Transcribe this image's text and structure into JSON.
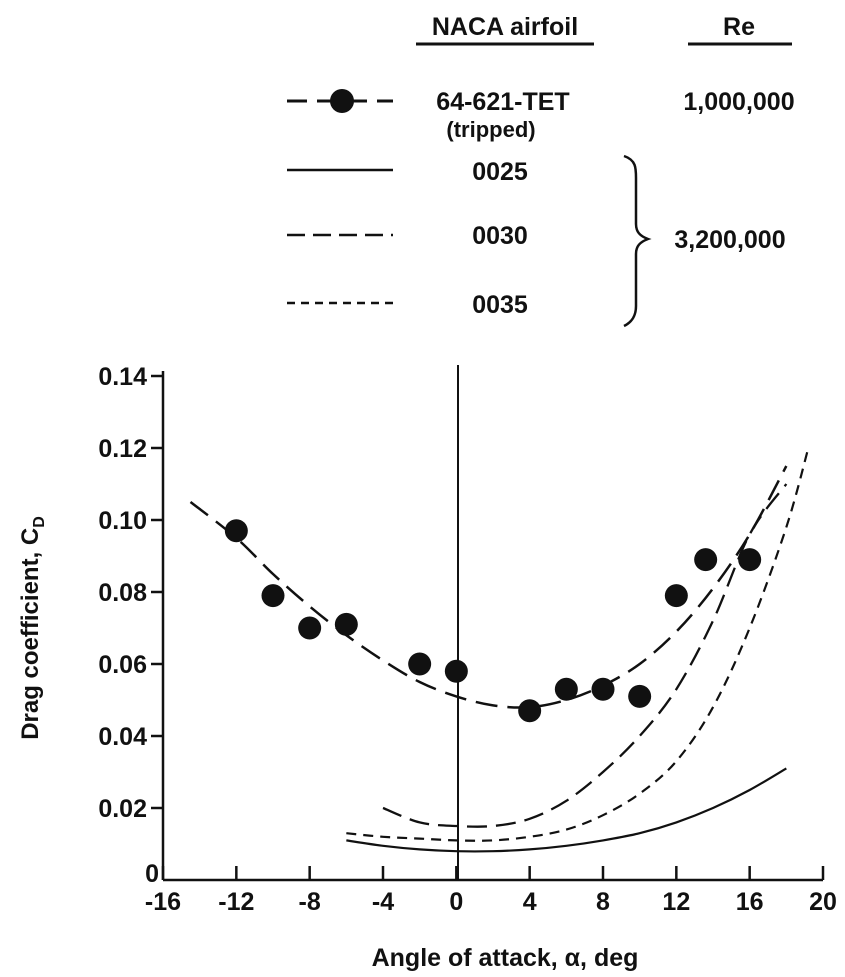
{
  "chart_data": {
    "type": "line",
    "xlabel": "Angle of attack, α, deg",
    "ylabel": "Drag coefficient, C",
    "ylabel_subscript": "D",
    "xlim": [
      -16,
      20
    ],
    "ylim": [
      0,
      0.14
    ],
    "xticks": [
      -16,
      -12,
      -8,
      -4,
      0,
      4,
      8,
      12,
      16,
      20
    ],
    "xtick_labels": [
      "-16",
      "-12",
      "-8",
      "-4",
      "0",
      "4",
      "8",
      "12",
      "16",
      "20"
    ],
    "yticks": [
      0,
      0.02,
      0.04,
      0.06,
      0.08,
      0.1,
      0.12,
      0.14
    ],
    "ytick_labels": [
      "0",
      "0.02",
      "0.04",
      "0.06",
      "0.08",
      "0.10",
      "0.12",
      "0.14"
    ],
    "legend": {
      "header_airfoil": "NACA airfoil",
      "header_re": "Re",
      "entries": [
        {
          "label": "64-621-TET",
          "sublabel": "(tripped)",
          "re": "1,000,000",
          "style": "dash-marker"
        },
        {
          "label": "0025",
          "style": "solid"
        },
        {
          "label": "0030",
          "style": "long-dash"
        },
        {
          "label": "0035",
          "style": "short-dash"
        }
      ],
      "bracket_re": "3,200,000"
    },
    "series": [
      {
        "name": "64-621-TET",
        "points": [
          [
            -12,
            0.097
          ],
          [
            -10,
            0.079
          ],
          [
            -8,
            0.07
          ],
          [
            -6,
            0.071
          ],
          [
            -2,
            0.06
          ],
          [
            0,
            0.058
          ],
          [
            4,
            0.047
          ],
          [
            6,
            0.053
          ],
          [
            8,
            0.053
          ],
          [
            10,
            0.051
          ],
          [
            12,
            0.079
          ],
          [
            13.6,
            0.089
          ],
          [
            16,
            0.089
          ]
        ],
        "curve": [
          [
            -14.5,
            0.105
          ],
          [
            -12,
            0.095
          ],
          [
            -10,
            0.085
          ],
          [
            -8,
            0.076
          ],
          [
            -6,
            0.068
          ],
          [
            -4,
            0.061
          ],
          [
            -2,
            0.055
          ],
          [
            0,
            0.051
          ],
          [
            2,
            0.0485
          ],
          [
            4,
            0.048
          ],
          [
            6,
            0.05
          ],
          [
            8,
            0.054
          ],
          [
            10,
            0.06
          ],
          [
            12,
            0.069
          ],
          [
            14,
            0.081
          ],
          [
            16,
            0.096
          ],
          [
            18,
            0.115
          ]
        ]
      },
      {
        "name": "0025",
        "curve": [
          [
            -6,
            0.011
          ],
          [
            -4,
            0.0095
          ],
          [
            -2,
            0.0085
          ],
          [
            0,
            0.008
          ],
          [
            2,
            0.008
          ],
          [
            4,
            0.0085
          ],
          [
            6,
            0.0095
          ],
          [
            8,
            0.011
          ],
          [
            10,
            0.013
          ],
          [
            12,
            0.016
          ],
          [
            14,
            0.02
          ],
          [
            16,
            0.025
          ],
          [
            18,
            0.031
          ]
        ]
      },
      {
        "name": "0030",
        "curve": [
          [
            -4,
            0.02
          ],
          [
            -2,
            0.016
          ],
          [
            0,
            0.015
          ],
          [
            2,
            0.015
          ],
          [
            4,
            0.017
          ],
          [
            6,
            0.022
          ],
          [
            8,
            0.03
          ],
          [
            10,
            0.04
          ],
          [
            12,
            0.053
          ],
          [
            14,
            0.072
          ],
          [
            16,
            0.096
          ],
          [
            18,
            0.11
          ]
        ]
      },
      {
        "name": "0035",
        "curve": [
          [
            -6,
            0.013
          ],
          [
            -4,
            0.012
          ],
          [
            -2,
            0.0115
          ],
          [
            0,
            0.011
          ],
          [
            2,
            0.011
          ],
          [
            4,
            0.012
          ],
          [
            6,
            0.014
          ],
          [
            8,
            0.018
          ],
          [
            10,
            0.024
          ],
          [
            12,
            0.033
          ],
          [
            14,
            0.048
          ],
          [
            16,
            0.07
          ],
          [
            18,
            0.098
          ],
          [
            19.2,
            0.12
          ]
        ]
      }
    ]
  }
}
